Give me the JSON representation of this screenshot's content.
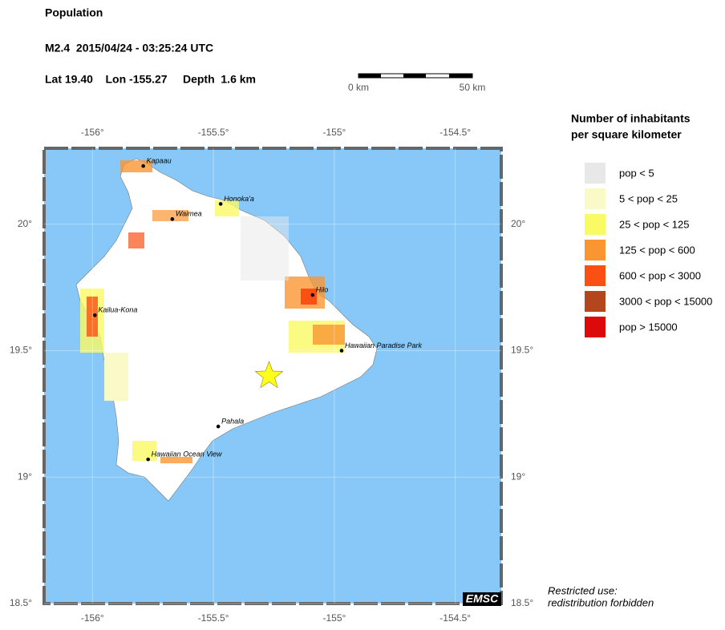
{
  "header": {
    "title": "Population",
    "event": "M2.4  2015/04/24 - 03:25:24 UTC",
    "location": "Lat 19.40    Lon -155.27     Depth  1.6 km"
  },
  "scale_bar": {
    "start": "0 km",
    "end": "50 km"
  },
  "map": {
    "lonlim": [
      -156.2,
      -154.31
    ],
    "latlim": [
      18.5,
      20.3
    ],
    "lonticks": [
      {
        "value": -156,
        "label": "-156°"
      },
      {
        "value": -155.5,
        "label": "-155.5°"
      },
      {
        "value": -155,
        "label": "-155°"
      },
      {
        "value": -154.5,
        "label": "-154.5°"
      }
    ],
    "latticks": [
      {
        "value": 20,
        "label": "20°"
      },
      {
        "value": 19.5,
        "label": "19.5°"
      },
      {
        "value": 19,
        "label": "19°"
      },
      {
        "value": 18.5,
        "label": "18.5°"
      }
    ],
    "epicenter": {
      "lon": -155.27,
      "lat": 19.4,
      "color": "#ffff1e"
    },
    "cities": [
      {
        "name": "Kapaau",
        "lon": -155.79,
        "lat": 20.23
      },
      {
        "name": "Honoka'a",
        "lon": -155.47,
        "lat": 20.08
      },
      {
        "name": "Waimea",
        "lon": -155.67,
        "lat": 20.02
      },
      {
        "name": "Hilo",
        "lon": -155.09,
        "lat": 19.72
      },
      {
        "name": "Kailua-Kona",
        "lon": -155.99,
        "lat": 19.64
      },
      {
        "name": "Hawaiian Paradise Park",
        "lon": -154.97,
        "lat": 19.5
      },
      {
        "name": "Pahala",
        "lon": -155.48,
        "lat": 19.2
      },
      {
        "name": "Hawaiian Ocean View",
        "lon": -155.77,
        "lat": 19.07
      }
    ],
    "logo": "EMSC"
  },
  "legend": {
    "title": [
      "Number of inhabitants",
      "per square kilometer"
    ],
    "items": [
      {
        "label": "pop < 5",
        "color": "#e8e8e8"
      },
      {
        "label": "5 < pop < 25",
        "color": "#fafac8"
      },
      {
        "label": "25 < pop < 125",
        "color": "#fafa64"
      },
      {
        "label": "125 < pop < 600",
        "color": "#fa9632"
      },
      {
        "label": "600 < pop < 3000",
        "color": "#fa5014"
      },
      {
        "label": "3000 < pop < 15000",
        "color": "#b4461e"
      },
      {
        "label": "pop > 15000",
        "color": "#dc0a0a"
      }
    ]
  },
  "footer": [
    "Restricted use:",
    "redistribution forbidden"
  ]
}
